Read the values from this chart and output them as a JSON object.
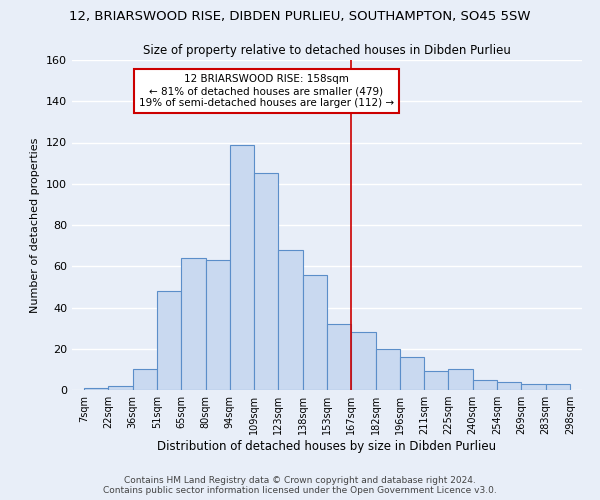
{
  "title": "12, BRIARSWOOD RISE, DIBDEN PURLIEU, SOUTHAMPTON, SO45 5SW",
  "subtitle": "Size of property relative to detached houses in Dibden Purlieu",
  "xlabel": "Distribution of detached houses by size in Dibden Purlieu",
  "ylabel": "Number of detached properties",
  "bar_labels": [
    "7sqm",
    "22sqm",
    "36sqm",
    "51sqm",
    "65sqm",
    "80sqm",
    "94sqm",
    "109sqm",
    "123sqm",
    "138sqm",
    "153sqm",
    "167sqm",
    "182sqm",
    "196sqm",
    "211sqm",
    "225sqm",
    "240sqm",
    "254sqm",
    "269sqm",
    "283sqm",
    "298sqm"
  ],
  "bar_values": [
    1,
    2,
    10,
    48,
    64,
    63,
    119,
    105,
    68,
    56,
    32,
    28,
    20,
    16,
    9,
    10,
    5,
    4,
    3,
    3
  ],
  "bar_color": "#c9d9f0",
  "bar_edge_color": "#5b8ec9",
  "annotation_text": "12 BRIARSWOOD RISE: 158sqm\n← 81% of detached houses are smaller (479)\n19% of semi-detached houses are larger (112) →",
  "annotation_box_color": "#ffffff",
  "annotation_box_edge_color": "#cc0000",
  "vline_x_index": 11,
  "vline_color": "#cc0000",
  "ylim": [
    0,
    160
  ],
  "footer": "Contains HM Land Registry data © Crown copyright and database right 2024.\nContains public sector information licensed under the Open Government Licence v3.0.",
  "background_color": "#e8eef8",
  "grid_color": "#ffffff"
}
